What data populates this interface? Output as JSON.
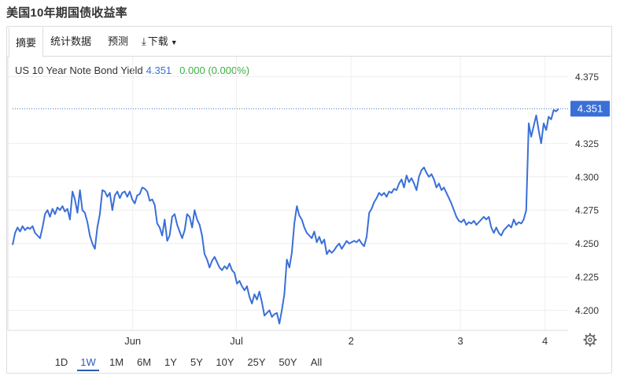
{
  "page": {
    "title": "美国10年期国债收益率"
  },
  "tabs": [
    {
      "label": "摘要",
      "active": true
    },
    {
      "label": "统计数据",
      "active": false
    },
    {
      "label": "预测",
      "active": false
    },
    {
      "label": "下载",
      "active": false
    }
  ],
  "legend": {
    "series_name": "US 10 Year Note Bond Yield",
    "last_value": "4.351",
    "change": "0.000 (0.000%)"
  },
  "ranges": [
    {
      "label": "1D",
      "active": false
    },
    {
      "label": "1W",
      "active": true
    },
    {
      "label": "1M",
      "active": false
    },
    {
      "label": "6M",
      "active": false
    },
    {
      "label": "1Y",
      "active": false
    },
    {
      "label": "5Y",
      "active": false
    },
    {
      "label": "10Y",
      "active": false
    },
    {
      "label": "25Y",
      "active": false
    },
    {
      "label": "50Y",
      "active": false
    },
    {
      "label": "All",
      "active": false
    }
  ],
  "icons": {
    "download": "download-icon",
    "settings": "gear-icon",
    "dropdown": "caret-down-icon"
  },
  "colors": {
    "line": "#3a6fd8",
    "positive": "#3cb043",
    "accent": "#2a5db0",
    "badge": "#3a6fd8"
  },
  "chart_data": {
    "type": "line",
    "title": "",
    "xlabel": "",
    "ylabel": "",
    "ylim": [
      4.185,
      4.39
    ],
    "y_ticks": [
      "4.375",
      "4.325",
      "4.300",
      "4.275",
      "4.250",
      "4.225",
      "4.200"
    ],
    "x_ticks": [
      {
        "label": "Jun",
        "t": 0.22
      },
      {
        "label": "Jul",
        "t": 0.41
      },
      {
        "label": "2",
        "t": 0.62
      },
      {
        "label": "3",
        "t": 0.82
      },
      {
        "label": "4",
        "t": 0.975
      }
    ],
    "last_value_label": "4.351",
    "last_value": 4.351,
    "grid": true,
    "series": [
      {
        "values": [
          4.249,
          4.258,
          4.262,
          4.259,
          4.263,
          4.26,
          4.262,
          4.261,
          4.263,
          4.258,
          4.256,
          4.254,
          4.262,
          4.272,
          4.275,
          4.27,
          4.276,
          4.272,
          4.277,
          4.275,
          4.278,
          4.274,
          4.276,
          4.268,
          4.289,
          4.283,
          4.273,
          4.29,
          4.275,
          4.273,
          4.266,
          4.256,
          4.25,
          4.246,
          4.262,
          4.272,
          4.29,
          4.289,
          4.285,
          4.288,
          4.275,
          4.286,
          4.289,
          4.284,
          4.288,
          4.289,
          4.285,
          4.289,
          4.283,
          4.28,
          4.286,
          4.287,
          4.292,
          4.291,
          4.289,
          4.282,
          4.283,
          4.279,
          4.265,
          4.262,
          4.256,
          4.268,
          4.252,
          4.256,
          4.27,
          4.272,
          4.264,
          4.259,
          4.254,
          4.26,
          4.272,
          4.27,
          4.262,
          4.275,
          4.268,
          4.264,
          4.256,
          4.242,
          4.238,
          4.232,
          4.237,
          4.24,
          4.236,
          4.232,
          4.23,
          4.233,
          4.231,
          4.235,
          4.23,
          4.228,
          4.22,
          4.222,
          4.218,
          4.215,
          4.218,
          4.21,
          4.205,
          4.212,
          4.208,
          4.214,
          4.206,
          4.196,
          4.198,
          4.2,
          4.195,
          4.197,
          4.198,
          4.19,
          4.2,
          4.212,
          4.238,
          4.232,
          4.243,
          4.265,
          4.278,
          4.271,
          4.268,
          4.262,
          4.258,
          4.256,
          4.254,
          4.259,
          4.251,
          4.255,
          4.25,
          4.253,
          4.242,
          4.245,
          4.243,
          4.245,
          4.248,
          4.25,
          4.246,
          4.249,
          4.252,
          4.25,
          4.251,
          4.252,
          4.251,
          4.253,
          4.25,
          4.248,
          4.255,
          4.273,
          4.276,
          4.281,
          4.284,
          4.288,
          4.286,
          4.288,
          4.285,
          4.289,
          4.288,
          4.291,
          4.29,
          4.295,
          4.298,
          4.292,
          4.301,
          4.296,
          4.299,
          4.295,
          4.29,
          4.3,
          4.305,
          4.307,
          4.303,
          4.3,
          4.302,
          4.298,
          4.292,
          4.295,
          4.29,
          4.292,
          4.288,
          4.284,
          4.28,
          4.275,
          4.27,
          4.267,
          4.266,
          4.268,
          4.264,
          4.266,
          4.265,
          4.267,
          4.264,
          4.266,
          4.268,
          4.27,
          4.268,
          4.27,
          4.262,
          4.258,
          4.262,
          4.258,
          4.256,
          4.26,
          4.262,
          4.264,
          4.262,
          4.268,
          4.264,
          4.266,
          4.265,
          4.268,
          4.275,
          4.34,
          4.33,
          4.338,
          4.346,
          4.335,
          4.325,
          4.34,
          4.335,
          4.345,
          4.343,
          4.35,
          4.349,
          4.351
        ]
      }
    ]
  }
}
